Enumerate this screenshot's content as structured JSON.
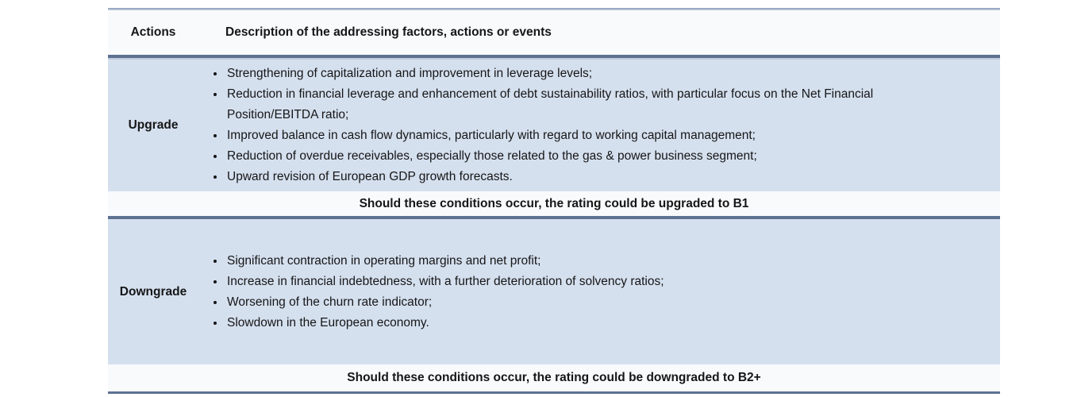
{
  "document": {
    "table": {
      "header": {
        "actions_label": "Actions",
        "description_label": "Description of the addressing factors, actions or events"
      },
      "sections": [
        {
          "action_label": "Upgrade",
          "bullets": [
            "Strengthening of capitalization and improvement in leverage levels;",
            "Reduction in financial leverage and enhancement of debt sustainability ratios, with particular focus on the Net Financial Position/EBITDA ratio;",
            "Improved balance in cash flow dynamics, particularly with regard to working capital management;",
            "Reduction of overdue receivables, especially those related to the gas & power business segment;",
            "Upward revision of European GDP growth forecasts."
          ],
          "outcome_text": "Should these conditions occur, the rating could be upgraded to B1"
        },
        {
          "action_label": "Downgrade",
          "bullets": [
            "Significant contraction in operating margins and net profit;",
            "Increase in financial indebtedness, with a further deterioration of solvency ratios;",
            "Worsening of the churn rate indicator;",
            "Slowdown in the European economy."
          ],
          "outcome_text": "Should these conditions occur, the rating could be downgraded to B2+"
        }
      ]
    },
    "colors": {
      "section_row_bg": "#d5e0ef",
      "outcome_row_bg": "#f9fafc",
      "border_dark": "#5d7292",
      "border_light_top": "#8799b4",
      "text": "#161616"
    }
  }
}
